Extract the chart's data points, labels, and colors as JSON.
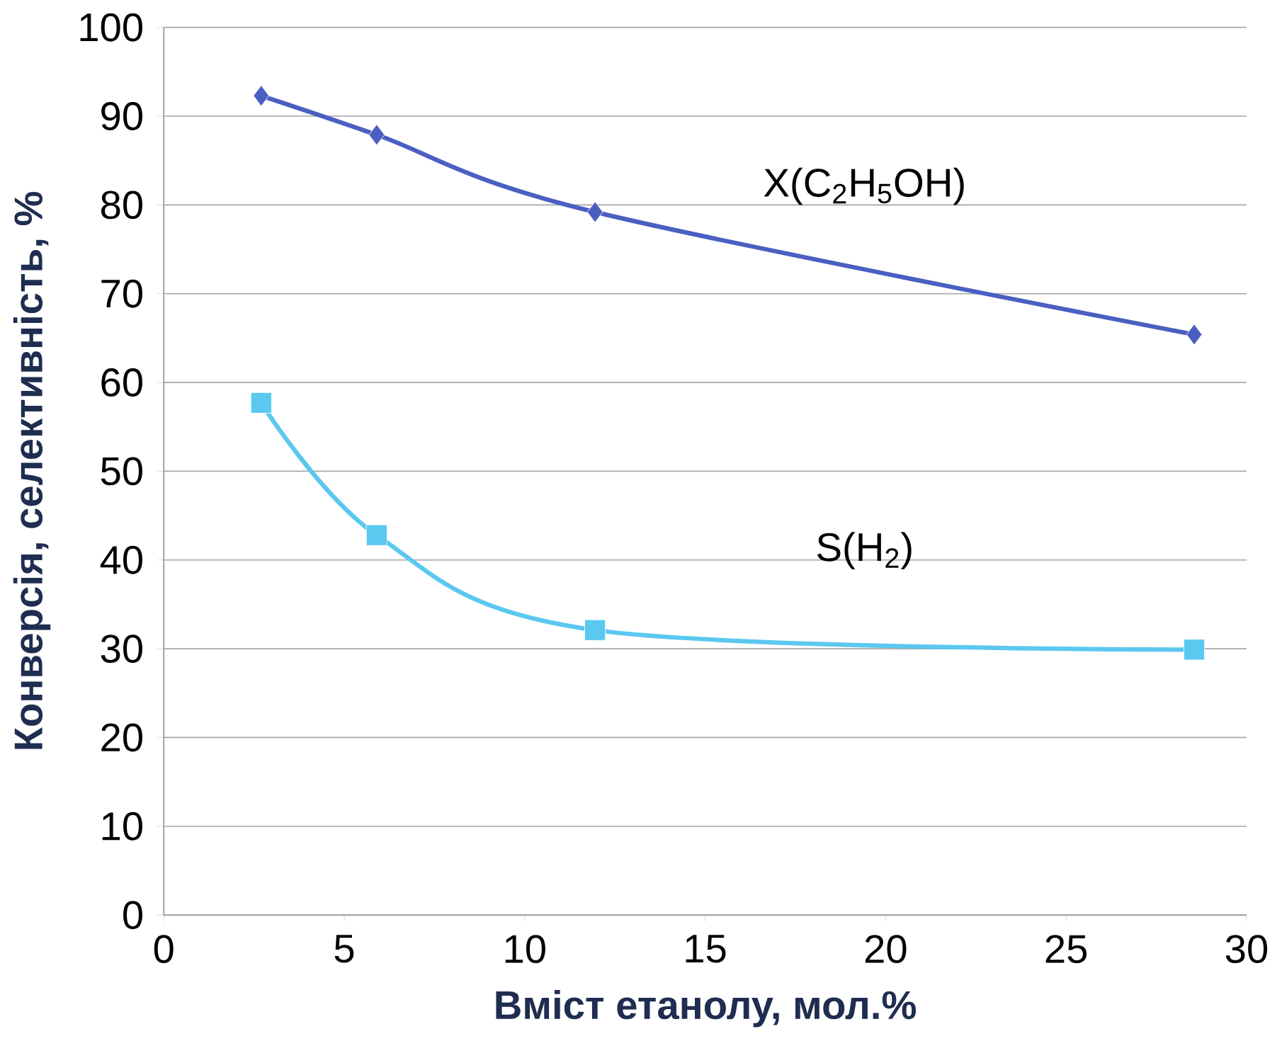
{
  "chart_data": {
    "type": "line",
    "xlabel": "Вміст етанолу, мол.%",
    "ylabel": "Конверсія, селективність, %",
    "xlim": [
      0,
      30
    ],
    "xticks": [
      0,
      5,
      10,
      15,
      20,
      25,
      30
    ],
    "ylim": [
      0,
      100
    ],
    "yticks": [
      0,
      10,
      20,
      30,
      40,
      50,
      60,
      70,
      80,
      90,
      100
    ],
    "grid": "y",
    "series": [
      {
        "name": "X(C$_{2}$H$_{5}$OH)",
        "color": "#4a5fc1",
        "marker": "diamond",
        "x": [
          2.7,
          5.9,
          11.95,
          28.55
        ],
        "values": [
          92.3,
          87.9,
          79.2,
          65.4
        ]
      },
      {
        "name": "S(H$_{2}$)",
        "color": "#5bc8f0",
        "marker": "square",
        "x": [
          2.7,
          5.9,
          11.95,
          28.55
        ],
        "values": [
          57.7,
          42.8,
          32.1,
          29.9
        ]
      }
    ]
  }
}
